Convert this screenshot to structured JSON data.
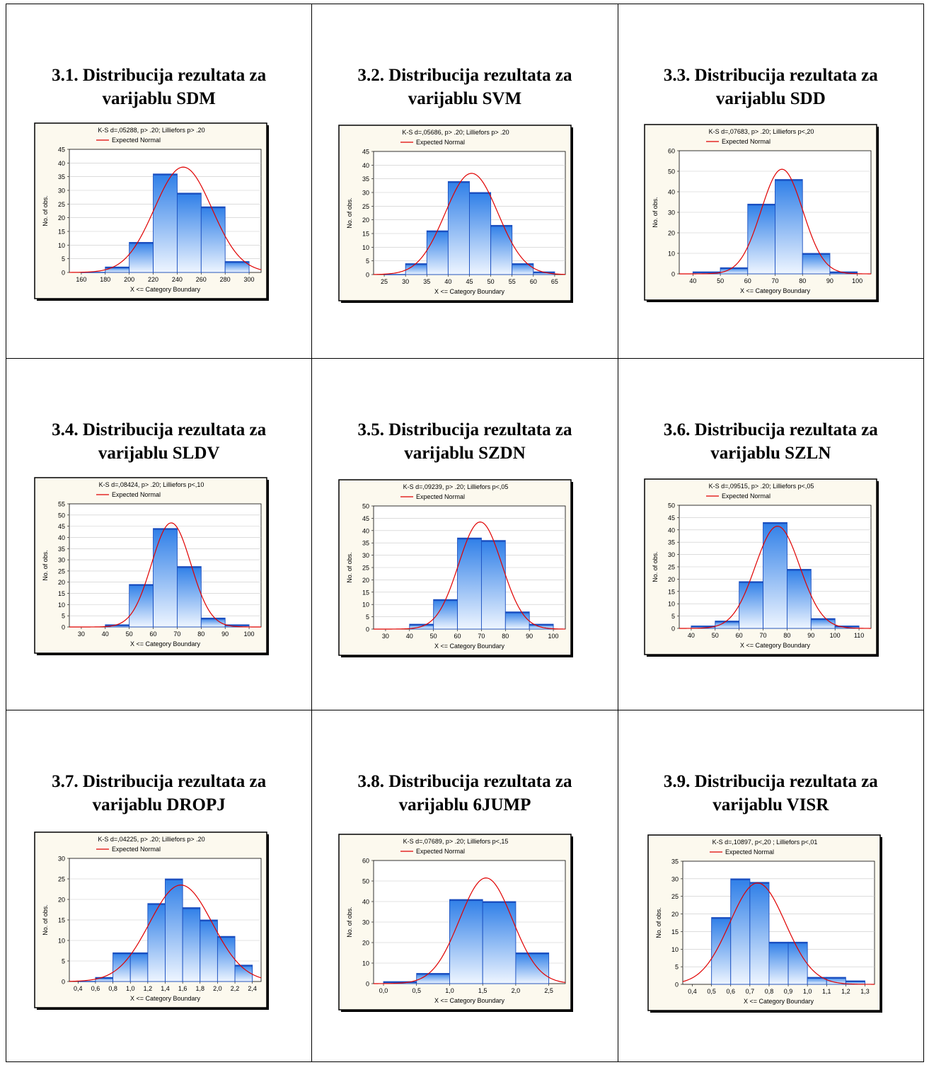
{
  "colors": {
    "bar_fill_top": "#2f7fe8",
    "bar_fill_bottom": "#eef5ff",
    "bar_stroke": "#1a4fc0",
    "curve": "#e00000",
    "panel_bg": "#fcf9ee",
    "plot_bg": "#ffffff"
  },
  "panels": [
    {
      "title_line1": "3.1. Distribucija rezultata za",
      "title_line2": "varijablu  SDM",
      "chart_data": {
        "type": "bar",
        "title": "K-S d=,05288, p> .20; Lilliefors p> .20",
        "legend": "Expected Normal",
        "xlabel": "X <= Category Boundary",
        "ylabel": "No. of obs.",
        "ylim": [
          0,
          45
        ],
        "yticks": [
          "0",
          "5",
          "10",
          "15",
          "20",
          "25",
          "30",
          "35",
          "40",
          "45"
        ],
        "xlim": [
          150,
          310
        ],
        "xticks": [
          {
            "v": 160,
            "l": "160"
          },
          {
            "v": 180,
            "l": "180"
          },
          {
            "v": 200,
            "l": "200"
          },
          {
            "v": 220,
            "l": "220"
          },
          {
            "v": 240,
            "l": "240"
          },
          {
            "v": 260,
            "l": "260"
          },
          {
            "v": 280,
            "l": "280"
          },
          {
            "v": 300,
            "l": "300"
          }
        ],
        "bins": [
          [
            160,
            180,
            0
          ],
          [
            180,
            200,
            2
          ],
          [
            200,
            220,
            11
          ],
          [
            220,
            240,
            36
          ],
          [
            240,
            260,
            29
          ],
          [
            260,
            280,
            24
          ],
          [
            280,
            300,
            4
          ]
        ],
        "normal": {
          "mean": 245,
          "sd": 24,
          "peak": 38.5
        }
      }
    },
    {
      "title_line1": "3.2. Distribucija rezultata za",
      "title_line2": "varijablu  SVM",
      "chart_data": {
        "type": "bar",
        "title": "K-S d=,05686, p> .20; Lilliefors p> .20",
        "legend": "Expected Normal",
        "xlabel": "X <= Category Boundary",
        "ylabel": "No. of obs.",
        "ylim": [
          0,
          45
        ],
        "yticks": [
          "0",
          "5",
          "10",
          "15",
          "20",
          "25",
          "30",
          "35",
          "40",
          "45"
        ],
        "xlim": [
          22.5,
          67.5
        ],
        "xticks": [
          {
            "v": 25,
            "l": "25"
          },
          {
            "v": 30,
            "l": "30"
          },
          {
            "v": 35,
            "l": "35"
          },
          {
            "v": 40,
            "l": "40"
          },
          {
            "v": 45,
            "l": "45"
          },
          {
            "v": 50,
            "l": "50"
          },
          {
            "v": 55,
            "l": "55"
          },
          {
            "v": 60,
            "l": "60"
          },
          {
            "v": 65,
            "l": "65"
          }
        ],
        "bins": [
          [
            25,
            30,
            0
          ],
          [
            30,
            35,
            4
          ],
          [
            35,
            40,
            16
          ],
          [
            40,
            45,
            34
          ],
          [
            45,
            50,
            30
          ],
          [
            50,
            55,
            18
          ],
          [
            55,
            60,
            4
          ],
          [
            60,
            65,
            1
          ]
        ],
        "normal": {
          "mean": 45.5,
          "sd": 6.2,
          "peak": 37
        }
      }
    },
    {
      "title_line1": "3.3. Distribucija rezultata za",
      "title_line2": "varijablu  SDD",
      "chart_data": {
        "type": "bar",
        "title": "K-S d=,07683, p> .20; Lilliefors p<,20",
        "legend": "Expected Normal",
        "xlabel": "X <= Category Boundary",
        "ylabel": "No. of obs.",
        "ylim": [
          0,
          60
        ],
        "yticks": [
          "0",
          "10",
          "20",
          "30",
          "40",
          "50",
          "60"
        ],
        "xlim": [
          35,
          105
        ],
        "xticks": [
          {
            "v": 40,
            "l": "40"
          },
          {
            "v": 50,
            "l": "50"
          },
          {
            "v": 60,
            "l": "60"
          },
          {
            "v": 70,
            "l": "70"
          },
          {
            "v": 80,
            "l": "80"
          },
          {
            "v": 90,
            "l": "90"
          },
          {
            "v": 100,
            "l": "100"
          }
        ],
        "bins": [
          [
            40,
            50,
            1
          ],
          [
            50,
            60,
            3
          ],
          [
            60,
            70,
            34
          ],
          [
            70,
            80,
            46
          ],
          [
            80,
            90,
            10
          ],
          [
            90,
            100,
            1
          ]
        ],
        "normal": {
          "mean": 72.5,
          "sd": 7.6,
          "peak": 51
        }
      }
    },
    {
      "title_line1": "3.4. Distribucija rezultata za",
      "title_line2": "varijablu  SLDV",
      "chart_data": {
        "type": "bar",
        "title": "K-S d=,08424, p> .20; Lilliefors p<,10",
        "legend": "Expected Normal",
        "xlabel": "X <= Category Boundary",
        "ylabel": "No. of obs.",
        "ylim": [
          0,
          55
        ],
        "yticks": [
          "0",
          "5",
          "10",
          "15",
          "20",
          "25",
          "30",
          "35",
          "40",
          "45",
          "50",
          "55"
        ],
        "xlim": [
          25,
          105
        ],
        "xticks": [
          {
            "v": 30,
            "l": "30"
          },
          {
            "v": 40,
            "l": "40"
          },
          {
            "v": 50,
            "l": "50"
          },
          {
            "v": 60,
            "l": "60"
          },
          {
            "v": 70,
            "l": "70"
          },
          {
            "v": 80,
            "l": "80"
          },
          {
            "v": 90,
            "l": "90"
          },
          {
            "v": 100,
            "l": "100"
          }
        ],
        "bins": [
          [
            40,
            50,
            1
          ],
          [
            50,
            60,
            19
          ],
          [
            60,
            70,
            44
          ],
          [
            70,
            80,
            27
          ],
          [
            80,
            90,
            4
          ],
          [
            90,
            100,
            1
          ]
        ],
        "normal": {
          "mean": 67.5,
          "sd": 8.2,
          "peak": 46.5
        }
      }
    },
    {
      "title_line1": "3.5. Distribucija rezultata za",
      "title_line2": "varijablu  SZDN",
      "chart_data": {
        "type": "bar",
        "title": "K-S d=,09239, p> .20; Lilliefors p<,05",
        "legend": "Expected Normal",
        "xlabel": "X <= Category Boundary",
        "ylabel": "No. of obs.",
        "ylim": [
          0,
          50
        ],
        "yticks": [
          "0",
          "5",
          "10",
          "15",
          "20",
          "25",
          "30",
          "35",
          "40",
          "45",
          "50"
        ],
        "xlim": [
          25,
          105
        ],
        "xticks": [
          {
            "v": 30,
            "l": "30"
          },
          {
            "v": 40,
            "l": "40"
          },
          {
            "v": 50,
            "l": "50"
          },
          {
            "v": 60,
            "l": "60"
          },
          {
            "v": 70,
            "l": "70"
          },
          {
            "v": 80,
            "l": "80"
          },
          {
            "v": 90,
            "l": "90"
          },
          {
            "v": 100,
            "l": "100"
          }
        ],
        "bins": [
          [
            40,
            50,
            2
          ],
          [
            50,
            60,
            12
          ],
          [
            60,
            70,
            37
          ],
          [
            70,
            80,
            36
          ],
          [
            80,
            90,
            7
          ],
          [
            90,
            100,
            2
          ]
        ],
        "normal": {
          "mean": 69.5,
          "sd": 9,
          "peak": 43.5
        }
      }
    },
    {
      "title_line1": "3.6. Distribucija rezultata za",
      "title_line2": "varijablu  SZLN",
      "chart_data": {
        "type": "bar",
        "title": "K-S d=,09515, p> .20; Lilliefors p<,05",
        "legend": "Expected Normal",
        "xlabel": "X <= Category Boundary",
        "ylabel": "No. of obs.",
        "ylim": [
          0,
          50
        ],
        "yticks": [
          "0",
          "5",
          "10",
          "15",
          "20",
          "25",
          "30",
          "35",
          "40",
          "45",
          "50"
        ],
        "xlim": [
          35,
          115
        ],
        "xticks": [
          {
            "v": 40,
            "l": "40"
          },
          {
            "v": 50,
            "l": "50"
          },
          {
            "v": 60,
            "l": "60"
          },
          {
            "v": 70,
            "l": "70"
          },
          {
            "v": 80,
            "l": "80"
          },
          {
            "v": 90,
            "l": "90"
          },
          {
            "v": 100,
            "l": "100"
          },
          {
            "v": 110,
            "l": "110"
          }
        ],
        "bins": [
          [
            40,
            50,
            1
          ],
          [
            50,
            60,
            3
          ],
          [
            60,
            70,
            19
          ],
          [
            70,
            80,
            43
          ],
          [
            80,
            90,
            24
          ],
          [
            90,
            100,
            4
          ],
          [
            100,
            110,
            1
          ]
        ],
        "normal": {
          "mean": 76,
          "sd": 9.3,
          "peak": 41.5
        }
      }
    },
    {
      "title_line1": "3.7. Distribucija rezultata za",
      "title_line2": "varijablu  DROPJ",
      "chart_data": {
        "type": "bar",
        "title": "K-S d=,04225, p> .20; Lilliefors p> .20",
        "legend": "Expected Normal",
        "xlabel": "X <= Category Boundary",
        "ylabel": "No. of obs.",
        "ylim": [
          0,
          30
        ],
        "yticks": [
          "0",
          "5",
          "10",
          "15",
          "20",
          "25",
          "30"
        ],
        "xlim": [
          0.3,
          2.5
        ],
        "xticks": [
          {
            "v": 0.4,
            "l": "0,4"
          },
          {
            "v": 0.6,
            "l": "0,6"
          },
          {
            "v": 0.8,
            "l": "0,8"
          },
          {
            "v": 1.0,
            "l": "1,0"
          },
          {
            "v": 1.2,
            "l": "1,2"
          },
          {
            "v": 1.4,
            "l": "1,4"
          },
          {
            "v": 1.6,
            "l": "1,6"
          },
          {
            "v": 1.8,
            "l": "1,8"
          },
          {
            "v": 2.0,
            "l": "2,0"
          },
          {
            "v": 2.2,
            "l": "2,2"
          },
          {
            "v": 2.4,
            "l": "2,4"
          }
        ],
        "bins": [
          [
            0.4,
            0.6,
            0
          ],
          [
            0.6,
            0.8,
            1
          ],
          [
            0.8,
            1.0,
            7
          ],
          [
            1.0,
            1.2,
            7
          ],
          [
            1.2,
            1.4,
            19
          ],
          [
            1.4,
            1.6,
            25
          ],
          [
            1.6,
            1.8,
            18
          ],
          [
            1.8,
            2.0,
            15
          ],
          [
            2.0,
            2.2,
            11
          ],
          [
            2.2,
            2.4,
            4
          ]
        ],
        "normal": {
          "mean": 1.58,
          "sd": 0.36,
          "peak": 23.5
        }
      }
    },
    {
      "title_line1": "3.8. Distribucija rezultata za",
      "title_line2": "varijablu  6JUMP",
      "chart_data": {
        "type": "bar",
        "title": "K-S d=,07689, p> .20; Lilliefors p<,15",
        "legend": "Expected Normal",
        "xlabel": "X <= Category Boundary",
        "ylabel": "No. of obs.",
        "ylim": [
          0,
          60
        ],
        "yticks": [
          "0",
          "10",
          "20",
          "30",
          "40",
          "50",
          "60"
        ],
        "xlim": [
          -0.15,
          2.75
        ],
        "xticks": [
          {
            "v": 0,
            "l": "0,0"
          },
          {
            "v": 0.5,
            "l": "0,5"
          },
          {
            "v": 1.0,
            "l": "1,0"
          },
          {
            "v": 1.5,
            "l": "1,5"
          },
          {
            "v": 2.0,
            "l": "2,0"
          },
          {
            "v": 2.5,
            "l": "2,5"
          }
        ],
        "bins": [
          [
            0,
            0.5,
            1
          ],
          [
            0.5,
            1.0,
            5
          ],
          [
            1.0,
            1.5,
            41
          ],
          [
            1.5,
            2.0,
            40
          ],
          [
            2.0,
            2.5,
            15
          ]
        ],
        "normal": {
          "mean": 1.55,
          "sd": 0.4,
          "peak": 51.5
        }
      }
    },
    {
      "title_line1": "3.9. Distribucija rezultata za",
      "title_line2": "varijablu  VISR",
      "chart_data": {
        "type": "bar",
        "title": "K-S d=,10897, p<,20 ; Lilliefors p<,01",
        "legend": "Expected Normal",
        "xlabel": "X <= Category Boundary",
        "ylabel": "No. of obs.",
        "ylim": [
          0,
          35
        ],
        "yticks": [
          "0",
          "5",
          "10",
          "15",
          "20",
          "25",
          "30",
          "35"
        ],
        "xlim": [
          0.35,
          1.35
        ],
        "xticks": [
          {
            "v": 0.4,
            "l": "0,4"
          },
          {
            "v": 0.5,
            "l": "0,5"
          },
          {
            "v": 0.6,
            "l": "0,6"
          },
          {
            "v": 0.7,
            "l": "0,7"
          },
          {
            "v": 0.8,
            "l": "0,8"
          },
          {
            "v": 0.9,
            "l": "0,9"
          },
          {
            "v": 1.0,
            "l": "1,0"
          },
          {
            "v": 1.1,
            "l": "1,1"
          },
          {
            "v": 1.2,
            "l": "1,2"
          },
          {
            "v": 1.3,
            "l": "1,3"
          }
        ],
        "bins": [
          [
            0.5,
            0.6,
            19
          ],
          [
            0.6,
            0.7,
            30
          ],
          [
            0.7,
            0.8,
            29
          ],
          [
            0.8,
            0.9,
            12
          ],
          [
            0.9,
            1.0,
            12
          ],
          [
            1.0,
            1.1,
            2
          ],
          [
            1.1,
            1.2,
            2
          ],
          [
            1.2,
            1.3,
            1
          ]
        ],
        "normal": {
          "mean": 0.74,
          "sd": 0.145,
          "peak": 28.8
        }
      }
    }
  ]
}
